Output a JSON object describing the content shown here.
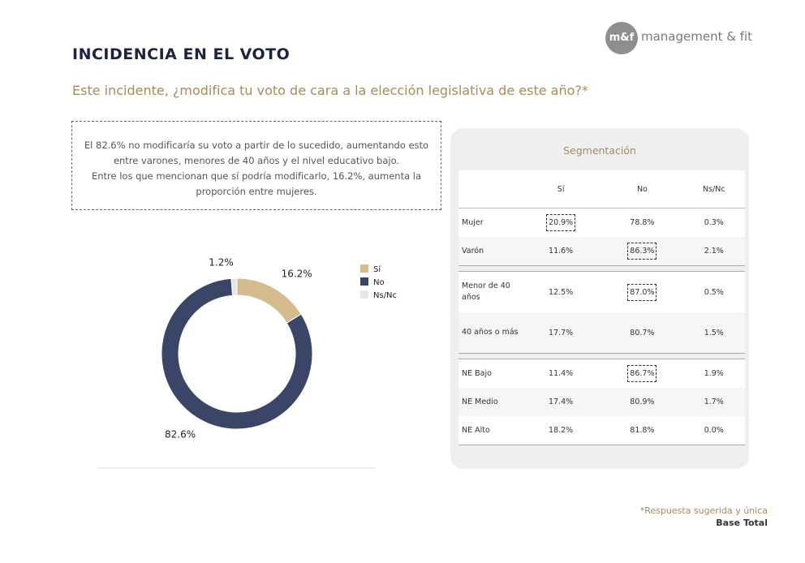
{
  "header": {
    "title": "INCIDENCIA EN EL VOTO",
    "subtitle": "Este incidente, ¿modifica tu voto de cara a la elección legislativa de este año?*",
    "logo_mark": "m&f",
    "logo_text": "management & fit"
  },
  "summary": [
    "El 82.6% no modificaría su voto a partir de lo sucedido, aumentando esto",
    "entre varones, menores de 40 años y el nivel educativo bajo.",
    "Entre los que mencionan que sí podría modificarlo, 16.2%, aumenta la",
    "proporción entre mujeres."
  ],
  "chart_data": {
    "type": "donut",
    "categories": [
      "Sí",
      "No",
      "Ns/Nc"
    ],
    "values": [
      16.2,
      82.6,
      1.2
    ],
    "value_labels": [
      "16.2%",
      "82.6%",
      "1.2%"
    ],
    "colors": [
      "#d5bc8f",
      "#3a4567",
      "#e6e6e8"
    ]
  },
  "table": {
    "title": "Segmentación",
    "columns": [
      "Sí",
      "No",
      "Ns/Nc"
    ],
    "groups": [
      {
        "rows": [
          {
            "label": "Mujer",
            "values": [
              "20.9%",
              "78.8%",
              "0.3%"
            ],
            "highlight": 0
          },
          {
            "label": "Varón",
            "values": [
              "11.6%",
              "86.3%",
              "2.1%"
            ],
            "highlight": 1
          }
        ]
      },
      {
        "rows": [
          {
            "label": "Menor de 40 años",
            "values": [
              "12.5%",
              "87.0%",
              "0.5%"
            ],
            "highlight": 1
          },
          {
            "label": "40 años o más",
            "values": [
              "17.7%",
              "80.7%",
              "1.5%"
            ]
          }
        ]
      },
      {
        "rows": [
          {
            "label": "NE Bajo",
            "values": [
              "11.4%",
              "86.7%",
              "1.9%"
            ],
            "highlight": 1
          },
          {
            "label": "NE Medio",
            "values": [
              "17.4%",
              "80.9%",
              "1.7%"
            ]
          },
          {
            "label": "NE Alto",
            "values": [
              "18.2%",
              "81.8%",
              "0.0%"
            ]
          }
        ]
      }
    ]
  },
  "footer": {
    "note": "*Respuesta sugerida y única",
    "base": "Base Total"
  }
}
